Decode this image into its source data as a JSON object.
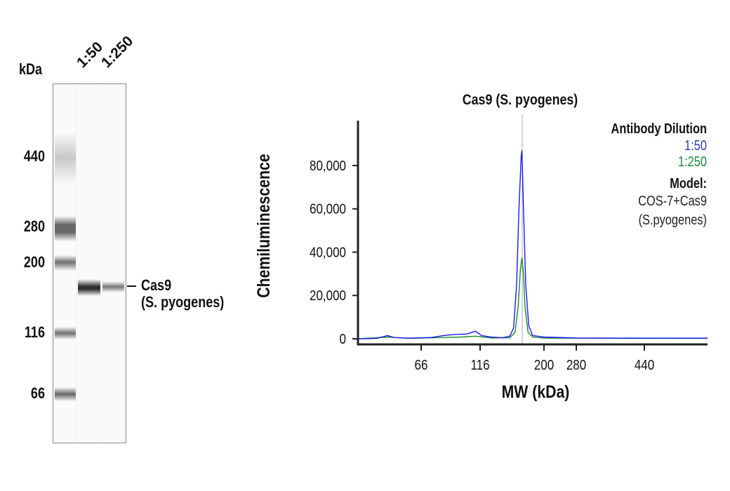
{
  "blot": {
    "unit_label": "kDa",
    "lane_labels": [
      "1:50",
      "1:250"
    ],
    "markers": [
      "440",
      "280",
      "200",
      "116",
      "66"
    ],
    "target_label_line1": "Cas9",
    "target_label_line2": "(S. pyogenes)"
  },
  "chart_data": {
    "type": "line",
    "title": "Cas9 (S. pyogenes)",
    "xlabel": "MW (kDa)",
    "ylabel": "Chemiluminescence",
    "x_ticks": [
      "66",
      "116",
      "200",
      "280",
      "440"
    ],
    "y_ticks": [
      "0",
      "20,000",
      "40,000",
      "60,000",
      "80,000"
    ],
    "y_tick_values": [
      0,
      20000,
      40000,
      60000,
      80000
    ],
    "ylim": [
      -1500,
      100000
    ],
    "xlim": [
      36,
      670
    ],
    "x_scale": "nonlinear (MW)",
    "marker_line_mw": 171,
    "legend": {
      "title": "Antibody Dilution",
      "model_label": "Model:",
      "model_line1": "COS-7+Cas9",
      "model_line2": "(S.pyogenes)",
      "placement": "top-right"
    },
    "series": [
      {
        "name": "1:50",
        "color": "#1a1aff",
        "x": [
          36,
          45,
          50,
          53,
          60,
          75,
          85,
          95,
          105,
          112,
          118,
          130,
          145,
          155,
          160,
          164,
          167,
          170,
          171,
          173,
          176,
          180,
          185,
          200,
          280,
          440,
          670
        ],
        "y": [
          0,
          200,
          1500,
          600,
          300,
          600,
          1500,
          2000,
          2200,
          3500,
          1500,
          800,
          500,
          1200,
          5000,
          25000,
          60000,
          84000,
          87000,
          60000,
          25000,
          6000,
          1500,
          800,
          400,
          300,
          300
        ]
      },
      {
        "name": "1:250",
        "color": "#1a8a2a",
        "x": [
          36,
          50,
          60,
          100,
          112,
          130,
          155,
          162,
          166,
          169,
          171,
          173,
          175,
          179,
          185,
          200,
          670
        ],
        "y": [
          0,
          800,
          200,
          800,
          1200,
          400,
          500,
          3000,
          15000,
          32000,
          37500,
          30000,
          15000,
          3000,
          800,
          300,
          200
        ]
      }
    ]
  }
}
